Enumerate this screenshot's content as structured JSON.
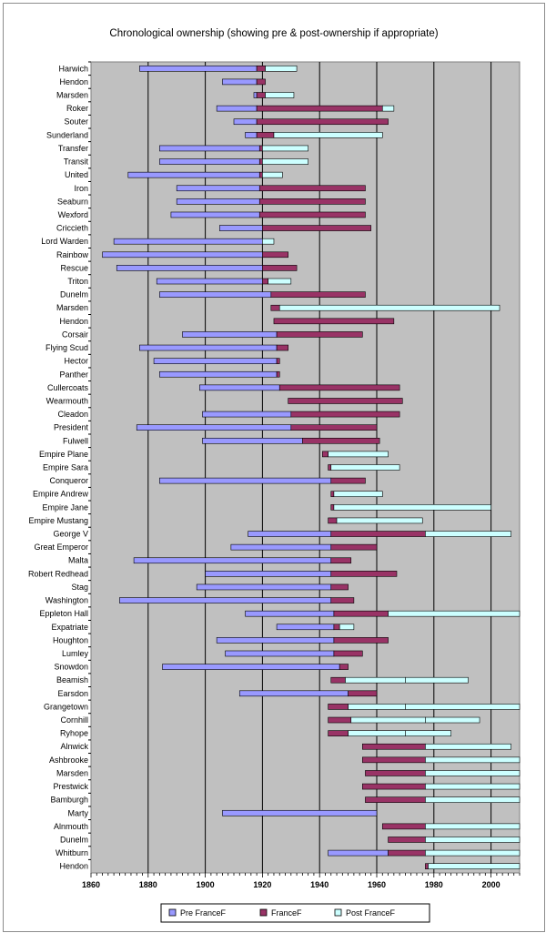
{
  "chart_data": {
    "type": "bar",
    "orientation": "horizontal",
    "stacked": true,
    "title": "Chronological ownership (showing pre & post-ownership if appropriate)",
    "xlim": [
      1860,
      2010
    ],
    "xticks": [
      1860,
      1880,
      1900,
      1920,
      1940,
      1960,
      1980,
      2000
    ],
    "grid": true,
    "legend_position": "bottom",
    "series": [
      {
        "name": "Pre FranceF",
        "color": "#9999ff"
      },
      {
        "name": "FranceF",
        "color": "#993366"
      },
      {
        "name": "Post FranceF",
        "color": "#ccffff"
      }
    ],
    "categories": [
      "Harwich",
      "Hendon",
      "Marsden",
      "Roker",
      "Souter",
      "Sunderland",
      "Transfer",
      "Transit",
      "United",
      "Iron",
      "Seaburn",
      "Wexford",
      "Criccieth",
      "Lord Warden",
      "Rainbow",
      "Rescue",
      "Triton",
      "Dunelm",
      "Marsden",
      "Hendon",
      "Corsair",
      "Flying Scud",
      "Hector",
      "Panther",
      "Cullercoats",
      "Wearmouth",
      "Cleadon",
      "President",
      "Fulwell",
      "Empire Plane",
      "Empire Sara",
      "Conqueror",
      "Empire Andrew",
      "Empire Jane",
      "Empire Mustang",
      "George V",
      "Great Emperor",
      "Malta",
      "Robert Redhead",
      "Stag",
      "Washington",
      "Eppleton Hall",
      "Expatriate",
      "Houghton",
      "Lumley",
      "Snowdon",
      "Beamish",
      "Earsdon",
      "Grangetown",
      "Cornhill",
      "Ryhope",
      "Alnwick",
      "Ashbrooke",
      "Marsden",
      "Prestwick",
      "Bamburgh",
      "Marty",
      "Alnmouth",
      "Dunelm",
      "Whitburn",
      "Hendon"
    ],
    "bars": [
      [
        1877,
        1918,
        1921,
        1932
      ],
      [
        1906,
        1918,
        1921,
        null
      ],
      [
        1917,
        1918,
        1921,
        1931
      ],
      [
        1904,
        1918,
        1962,
        1966
      ],
      [
        1910,
        1918,
        1964,
        null
      ],
      [
        1914,
        1918,
        1924,
        1962
      ],
      [
        1884,
        1919,
        1920,
        1936
      ],
      [
        1884,
        1919,
        1920,
        1936
      ],
      [
        1873,
        1919,
        1920,
        1927
      ],
      [
        1890,
        1919,
        1956,
        null
      ],
      [
        1890,
        1919,
        1956,
        null
      ],
      [
        1888,
        1919,
        1956,
        null
      ],
      [
        1905,
        1920,
        1958,
        null
      ],
      [
        1868,
        1920,
        1920,
        1924
      ],
      [
        1864,
        1920,
        1929,
        null
      ],
      [
        1869,
        1920,
        1932,
        null
      ],
      [
        1883,
        1920,
        1922,
        1930
      ],
      [
        1884,
        1923,
        1956,
        null
      ],
      [
        null,
        1923,
        1926,
        2003
      ],
      [
        null,
        1924,
        1966,
        null
      ],
      [
        1892,
        1925,
        1955,
        null
      ],
      [
        1877,
        1925,
        1929,
        null
      ],
      [
        1882,
        1925,
        1926,
        null
      ],
      [
        1884,
        1925,
        1926,
        null
      ],
      [
        1898,
        1926,
        1968,
        null
      ],
      [
        null,
        1929,
        1969,
        null
      ],
      [
        1899,
        1930,
        1968,
        null
      ],
      [
        1876,
        1930,
        1960,
        null
      ],
      [
        1899,
        1934,
        1961,
        null
      ],
      [
        null,
        1941,
        1943,
        1964
      ],
      [
        null,
        1943,
        1944,
        1968
      ],
      [
        1884,
        1944,
        1956,
        null
      ],
      [
        null,
        1944,
        1945,
        1962
      ],
      [
        null,
        1944,
        1945,
        2000
      ],
      [
        null,
        1943,
        1946,
        1976
      ],
      [
        1915,
        1944,
        1977,
        2007
      ],
      [
        1909,
        1944,
        1960,
        null
      ],
      [
        1875,
        1944,
        1951,
        null
      ],
      [
        1900,
        1944,
        1967,
        null
      ],
      [
        1897,
        1944,
        1950,
        null
      ],
      [
        1870,
        1944,
        1952,
        null
      ],
      [
        1914,
        1945,
        1964,
        2010
      ],
      [
        1925,
        1945,
        1947,
        1952
      ],
      [
        1904,
        1945,
        1964,
        null
      ],
      [
        1907,
        1945,
        1955,
        null
      ],
      [
        1885,
        1947,
        1950,
        null
      ],
      [
        null,
        1944,
        1949,
        1970,
        1992
      ],
      [
        1912,
        1950,
        1960,
        null
      ],
      [
        null,
        1943,
        1950,
        1970,
        2010
      ],
      [
        null,
        1943,
        1951,
        1977,
        1996
      ],
      [
        null,
        1943,
        1950,
        1970,
        1986
      ],
      [
        null,
        1955,
        1977,
        2007
      ],
      [
        null,
        1955,
        1977,
        2010
      ],
      [
        null,
        1956,
        1977,
        2010
      ],
      [
        null,
        1955,
        1977,
        2010
      ],
      [
        null,
        1956,
        1977,
        2010
      ],
      [
        1906,
        1960,
        null,
        null
      ],
      [
        null,
        1962,
        1977,
        2010
      ],
      [
        null,
        1964,
        1977,
        2010
      ],
      [
        1943,
        1964,
        1977,
        2010
      ],
      [
        null,
        1977,
        1978,
        2010
      ]
    ]
  }
}
